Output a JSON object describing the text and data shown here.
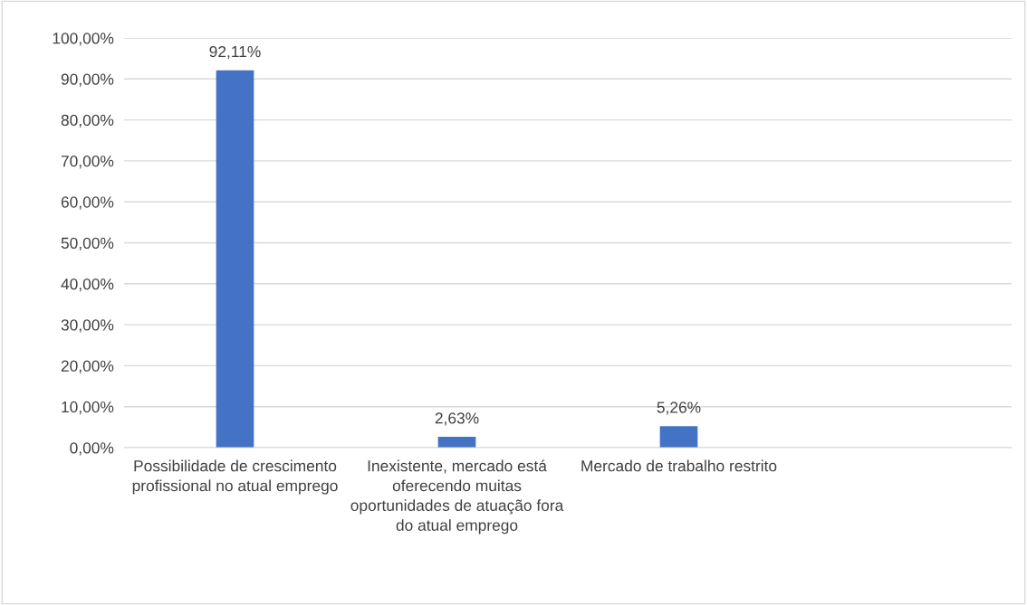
{
  "chart_data": {
    "type": "bar",
    "categories": [
      "Possibilidade de crescimento profissional no atual emprego",
      "Inexistente, mercado está oferecendo muitas oportunidades de atuação fora do atual emprego",
      "Mercado de trabalho restrito",
      null
    ],
    "values": [
      92.11,
      2.63,
      5.26,
      null
    ],
    "value_labels": [
      "92,11%",
      "2,63%",
      "5,26%",
      null
    ],
    "color": "#4472c4",
    "ylim": [
      0,
      100
    ],
    "yticks": [
      {
        "value": 0,
        "label": "0,00%"
      },
      {
        "value": 10,
        "label": "10,00%"
      },
      {
        "value": 20,
        "label": "20,00%"
      },
      {
        "value": 30,
        "label": "30,00%"
      },
      {
        "value": 40,
        "label": "40,00%"
      },
      {
        "value": 50,
        "label": "50,00%"
      },
      {
        "value": 60,
        "label": "60,00%"
      },
      {
        "value": 70,
        "label": "70,00%"
      },
      {
        "value": 80,
        "label": "80,00%"
      },
      {
        "value": 90,
        "label": "90,00%"
      },
      {
        "value": 100,
        "label": "100,00%"
      }
    ],
    "grid": "y",
    "legend": false
  }
}
